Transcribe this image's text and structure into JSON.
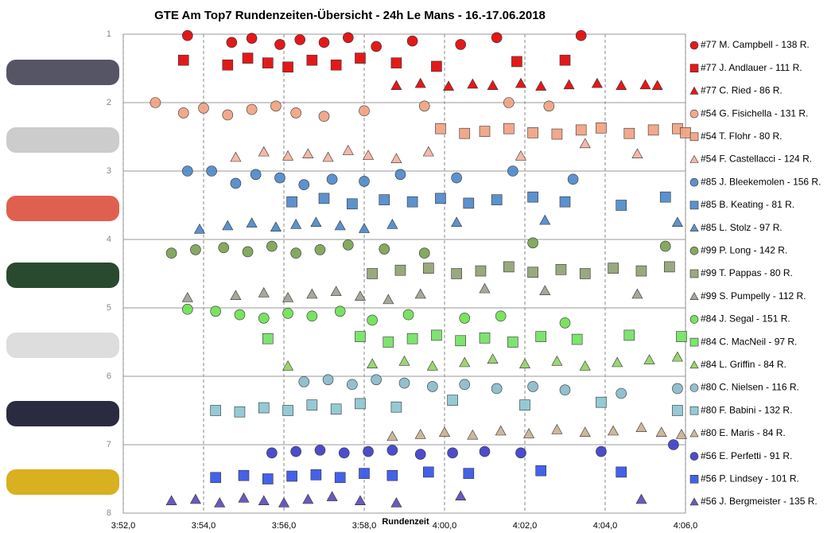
{
  "chart_data": {
    "type": "scatter",
    "title": "GTE Am  Top7 Rundenzeiten-Übersicht  - 24h Le Mans  - 16.-17.06.2018",
    "x_label": "Rundenzeit",
    "xlim": [
      232,
      246
    ],
    "xticks": [
      {
        "value": 232,
        "label": "3:52,0"
      },
      {
        "value": 234,
        "label": "3:54,0"
      },
      {
        "value": 236,
        "label": "3:56,0"
      },
      {
        "value": 238,
        "label": "3:58,0"
      },
      {
        "value": 240,
        "label": "4:00,0"
      },
      {
        "value": 242,
        "label": "4:02,0"
      },
      {
        "value": 244,
        "label": "4:04,0"
      },
      {
        "value": 246,
        "label": "4:06,0"
      }
    ],
    "ylim": [
      1,
      8
    ],
    "y_reversed": true,
    "yticks": [
      1,
      2,
      3,
      4,
      5,
      6,
      7,
      8
    ],
    "grid": true,
    "legend": "right",
    "series": [
      {
        "name": "#77 M. Campbell - 138 R.",
        "color": "#e00000",
        "marker": "circle",
        "x": [
          233.6,
          234.7,
          235.2,
          235.9,
          236.4,
          237.0,
          237.6,
          238.3,
          239.2,
          240.4,
          241.3,
          243.4
        ],
        "y": [
          1.02,
          1.12,
          1.06,
          1.15,
          1.08,
          1.12,
          1.05,
          1.18,
          1.1,
          1.15,
          1.05,
          1.02
        ]
      },
      {
        "name": "#77 J. Andlauer - 111 R.",
        "color": "#e00000",
        "marker": "square",
        "x": [
          233.5,
          234.6,
          235.1,
          235.6,
          236.1,
          236.7,
          237.3,
          237.9,
          238.8,
          239.8,
          241.8,
          243.0
        ],
        "y": [
          1.38,
          1.45,
          1.35,
          1.42,
          1.48,
          1.38,
          1.45,
          1.35,
          1.42,
          1.47,
          1.4,
          1.38
        ]
      },
      {
        "name": "#77 C. Ried - 86 R.",
        "color": "#e00000",
        "marker": "triangle",
        "x": [
          238.8,
          239.4,
          240.1,
          240.7,
          241.2,
          241.9,
          242.4,
          243.1,
          243.8,
          244.4,
          245.0,
          245.3
        ],
        "y": [
          1.75,
          1.72,
          1.76,
          1.73,
          1.75,
          1.72,
          1.76,
          1.74,
          1.72,
          1.75,
          1.74,
          1.75
        ]
      },
      {
        "name": "#54 G. Fisichella - 131 R.",
        "color": "#f0a080",
        "marker": "circle",
        "x": [
          232.8,
          233.5,
          234.0,
          234.6,
          235.2,
          235.8,
          236.3,
          237.0,
          238.0,
          239.5,
          241.6,
          242.6
        ],
        "y": [
          2.0,
          2.15,
          2.08,
          2.18,
          2.1,
          2.05,
          2.15,
          2.2,
          2.12,
          2.05,
          2.0,
          2.05
        ]
      },
      {
        "name": "#54 T. Flohr - 80 R.",
        "color": "#f0a080",
        "marker": "square",
        "x": [
          239.9,
          240.5,
          241.0,
          241.6,
          242.2,
          242.8,
          243.4,
          243.9,
          244.6,
          245.2,
          245.8,
          246.0
        ],
        "y": [
          2.38,
          2.45,
          2.42,
          2.38,
          2.44,
          2.46,
          2.4,
          2.37,
          2.45,
          2.4,
          2.38,
          2.44
        ]
      },
      {
        "name": "#54 F. Castellacci - 124 R.",
        "color": "#f4b0a0",
        "marker": "triangle",
        "x": [
          234.8,
          235.5,
          236.1,
          236.6,
          237.1,
          237.6,
          238.1,
          238.8,
          239.6,
          241.9,
          243.5,
          244.8
        ],
        "y": [
          2.8,
          2.72,
          2.78,
          2.75,
          2.8,
          2.7,
          2.77,
          2.82,
          2.72,
          2.78,
          2.6,
          2.75
        ]
      },
      {
        "name": "#85 J. Bleekemolen - 156 R.",
        "color": "#4a86c8",
        "marker": "circle",
        "x": [
          233.6,
          234.2,
          234.8,
          235.3,
          235.9,
          236.5,
          237.2,
          238.0,
          238.9,
          240.3,
          241.7,
          243.2
        ],
        "y": [
          3.0,
          3.0,
          3.18,
          3.05,
          3.1,
          3.2,
          3.12,
          3.15,
          3.05,
          3.1,
          3.0,
          3.12
        ]
      },
      {
        "name": "#85 B. Keating - 81 R.",
        "color": "#4a86c8",
        "marker": "square",
        "x": [
          236.2,
          237.0,
          237.7,
          238.5,
          239.2,
          239.9,
          240.6,
          241.3,
          242.2,
          243.0,
          244.4,
          245.5
        ],
        "y": [
          3.45,
          3.4,
          3.48,
          3.42,
          3.45,
          3.4,
          3.47,
          3.42,
          3.38,
          3.45,
          3.5,
          3.38
        ]
      },
      {
        "name": "#85 L. Stolz - 97 R.",
        "color": "#4a86c8",
        "marker": "triangle",
        "x": [
          233.9,
          234.6,
          235.2,
          235.8,
          236.3,
          236.8,
          237.4,
          238.0,
          238.7,
          240.3,
          242.5,
          245.8
        ],
        "y": [
          3.85,
          3.8,
          3.76,
          3.82,
          3.78,
          3.75,
          3.8,
          3.84,
          3.78,
          3.75,
          3.72,
          3.75
        ]
      },
      {
        "name": "#99 P. Long - 142 R.",
        "color": "#78a050",
        "marker": "circle",
        "x": [
          233.2,
          233.8,
          234.5,
          235.1,
          235.7,
          236.3,
          236.9,
          237.6,
          238.5,
          239.5,
          242.2,
          245.5
        ],
        "y": [
          4.2,
          4.15,
          4.12,
          4.18,
          4.1,
          4.2,
          4.15,
          4.08,
          4.14,
          4.2,
          4.05,
          4.1
        ]
      },
      {
        "name": "#99 T. Pappas - 80 R.",
        "color": "#8ea070",
        "marker": "square",
        "x": [
          238.2,
          238.9,
          239.6,
          240.3,
          240.9,
          241.6,
          242.2,
          242.9,
          243.5,
          244.2,
          244.9,
          245.6
        ],
        "y": [
          4.5,
          4.45,
          4.42,
          4.5,
          4.46,
          4.4,
          4.48,
          4.44,
          4.5,
          4.42,
          4.46,
          4.4
        ]
      },
      {
        "name": "#99 S. Pumpelly - 112 R.",
        "color": "#9aa090",
        "marker": "triangle",
        "x": [
          233.6,
          234.8,
          235.5,
          236.1,
          236.7,
          237.3,
          237.9,
          238.6,
          239.4,
          241.0,
          242.5,
          244.8
        ],
        "y": [
          4.85,
          4.82,
          4.78,
          4.85,
          4.8,
          4.76,
          4.83,
          4.88,
          4.8,
          4.72,
          4.75,
          4.8
        ]
      },
      {
        "name": "#84 J. Segal - 151 R.",
        "color": "#6ae050",
        "marker": "circle",
        "x": [
          233.6,
          234.3,
          234.9,
          235.5,
          236.1,
          236.7,
          237.4,
          238.2,
          239.1,
          240.5,
          241.4,
          243.0
        ],
        "y": [
          5.02,
          5.05,
          5.1,
          5.15,
          5.08,
          5.12,
          5.05,
          5.18,
          5.1,
          5.15,
          5.12,
          5.22
        ]
      },
      {
        "name": "#84 C. MacNeil - 97 R.",
        "color": "#70e060",
        "marker": "square",
        "x": [
          235.6,
          237.9,
          238.6,
          239.2,
          239.8,
          240.4,
          241.0,
          241.7,
          242.4,
          243.3,
          244.6,
          245.9
        ],
        "y": [
          5.45,
          5.42,
          5.5,
          5.45,
          5.4,
          5.48,
          5.44,
          5.5,
          5.42,
          5.46,
          5.4,
          5.42
        ]
      },
      {
        "name": "#84 L. Griffin - 84 R.",
        "color": "#90d060",
        "marker": "triangle",
        "x": [
          236.1,
          238.2,
          239.0,
          239.7,
          240.5,
          241.2,
          242.0,
          242.8,
          243.5,
          244.3,
          245.1,
          245.8
        ],
        "y": [
          5.85,
          5.82,
          5.78,
          5.85,
          5.8,
          5.75,
          5.82,
          5.78,
          5.85,
          5.8,
          5.76,
          5.72
        ]
      },
      {
        "name": "#80 C. Nielsen - 116 R.",
        "color": "#88b8c8",
        "marker": "circle",
        "x": [
          236.5,
          237.1,
          237.7,
          238.3,
          239.0,
          239.7,
          240.5,
          241.3,
          242.2,
          243.0,
          244.4,
          245.8
        ],
        "y": [
          6.08,
          6.05,
          6.12,
          6.05,
          6.1,
          6.15,
          6.12,
          6.18,
          6.15,
          6.2,
          6.25,
          6.18
        ]
      },
      {
        "name": "#80 F. Babini - 132 R.",
        "color": "#8ac4d0",
        "marker": "square",
        "x": [
          234.3,
          234.9,
          235.5,
          236.1,
          236.7,
          237.3,
          237.9,
          238.8,
          240.2,
          242.0,
          243.9,
          245.8
        ],
        "y": [
          6.5,
          6.52,
          6.46,
          6.5,
          6.42,
          6.48,
          6.4,
          6.45,
          6.35,
          6.42,
          6.38,
          6.5
        ]
      },
      {
        "name": "#80 E. Maris - 84 R.",
        "color": "#c8b090",
        "marker": "triangle",
        "x": [
          238.7,
          239.4,
          240.0,
          240.7,
          241.4,
          242.1,
          242.8,
          243.5,
          244.2,
          244.9,
          245.4,
          245.9
        ],
        "y": [
          6.88,
          6.85,
          6.82,
          6.86,
          6.8,
          6.84,
          6.78,
          6.82,
          6.8,
          6.75,
          6.82,
          6.85
        ]
      },
      {
        "name": "#56 E. Perfetti - 91 R.",
        "color": "#3838c8",
        "marker": "circle",
        "x": [
          235.7,
          236.3,
          236.9,
          237.5,
          238.1,
          238.7,
          239.4,
          240.2,
          241.0,
          241.9,
          243.9,
          245.7
        ],
        "y": [
          7.12,
          7.1,
          7.08,
          7.12,
          7.1,
          7.08,
          7.14,
          7.12,
          7.1,
          7.12,
          7.1,
          7.0
        ]
      },
      {
        "name": "#56 P. Lindsey - 101 R.",
        "color": "#3050e8",
        "marker": "square",
        "x": [
          234.3,
          235.0,
          235.6,
          236.2,
          236.8,
          237.4,
          238.0,
          238.7,
          239.6,
          240.6,
          242.4,
          244.4
        ],
        "y": [
          7.48,
          7.45,
          7.5,
          7.46,
          7.44,
          7.48,
          7.42,
          7.45,
          7.4,
          7.42,
          7.38,
          7.4
        ]
      },
      {
        "name": "#56 J. Bergmeister - 135 R.",
        "color": "#5848b8",
        "marker": "triangle",
        "x": [
          233.2,
          233.8,
          234.4,
          235.0,
          235.5,
          236.0,
          236.6,
          237.2,
          237.9,
          238.8,
          240.4,
          244.9
        ],
        "y": [
          7.82,
          7.8,
          7.85,
          7.78,
          7.82,
          7.85,
          7.8,
          7.76,
          7.82,
          7.85,
          7.75,
          7.8
        ]
      }
    ]
  }
}
